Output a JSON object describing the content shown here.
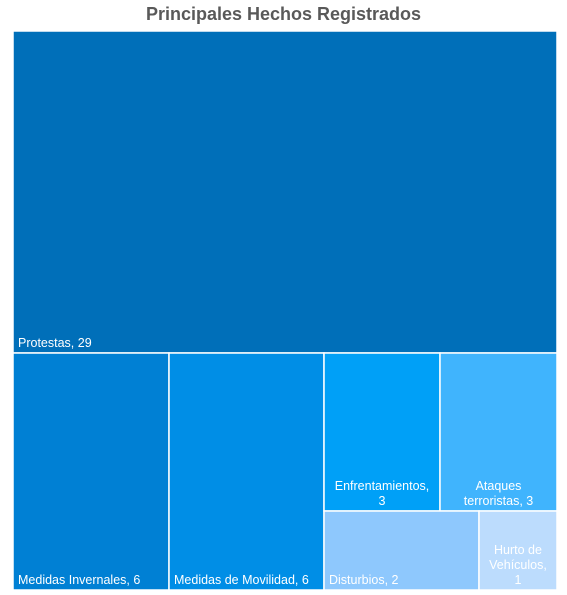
{
  "title": "Principales Hechos Registrados",
  "chart_data": {
    "type": "treemap",
    "title": "Principales Hechos Registrados",
    "items": [
      {
        "name": "Protestas",
        "value": 29,
        "label": [
          "Protestas, 29"
        ],
        "color": "#006fb9",
        "align": "left"
      },
      {
        "name": "Medidas Invernales",
        "value": 6,
        "label": [
          "Medidas Invernales, 6"
        ],
        "color": "#0080d4",
        "align": "left"
      },
      {
        "name": "Medidas de Movilidad",
        "value": 6,
        "label": [
          "Medidas de Movilidad, 6"
        ],
        "color": "#008ee6",
        "align": "left"
      },
      {
        "name": "Enfrentamientos",
        "value": 3,
        "label": [
          "Enfrentamientos,",
          "3"
        ],
        "color": "#00a0f7",
        "align": "center"
      },
      {
        "name": "Ataques terroristas",
        "value": 3,
        "label": [
          "Ataques",
          "terroristas, 3"
        ],
        "color": "#40b4fd",
        "align": "center"
      },
      {
        "name": "Disturbios",
        "value": 2,
        "label": [
          "Disturbios, 2"
        ],
        "color": "#8ec8fd",
        "align": "left"
      },
      {
        "name": "Hurto de Vehículos",
        "value": 1,
        "label": [
          "Hurto de",
          "Vehículos,",
          "1"
        ],
        "color": "#bcdcfd",
        "align": "center"
      }
    ]
  }
}
